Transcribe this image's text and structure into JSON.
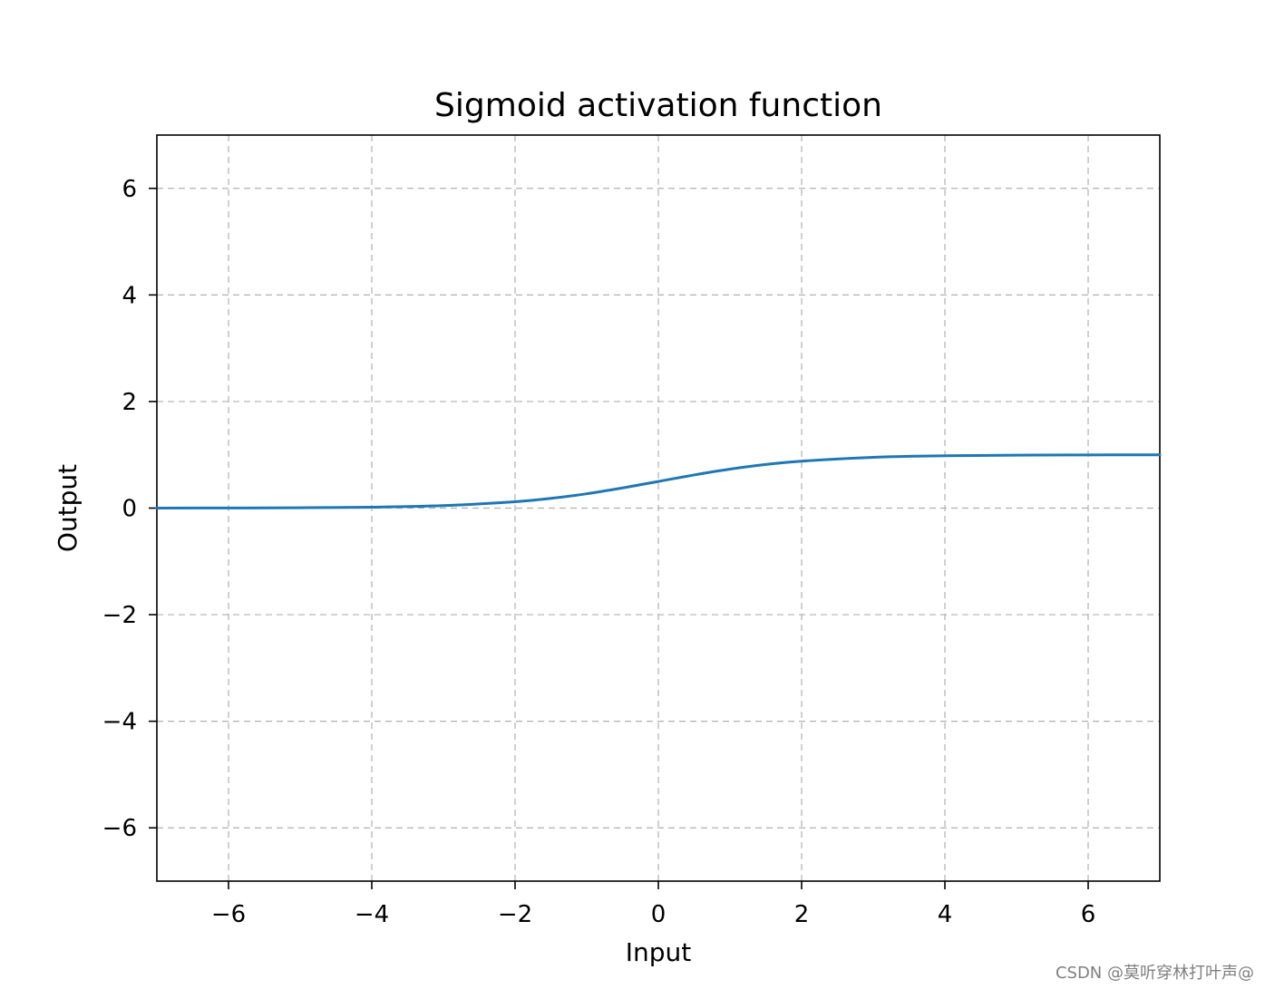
{
  "chart_data": {
    "type": "line",
    "title": "Sigmoid activation function",
    "xlabel": "Input",
    "ylabel": "Output",
    "xlim": [
      -7,
      7
    ],
    "ylim": [
      -7,
      7
    ],
    "xticks": [
      -6,
      -4,
      -2,
      0,
      2,
      4,
      6
    ],
    "yticks": [
      -6,
      -4,
      -2,
      0,
      2,
      4,
      6
    ],
    "xtick_labels": [
      "−6",
      "−4",
      "−2",
      "0",
      "2",
      "4",
      "6"
    ],
    "ytick_labels": [
      "−6",
      "−4",
      "−2",
      "0",
      "2",
      "4",
      "6"
    ],
    "grid": true,
    "grid_style": "dashed",
    "series": [
      {
        "color": "#1f77b4",
        "x": [
          -7,
          -6,
          -5,
          -4,
          -3,
          -2,
          -1.5,
          -1,
          -0.5,
          0,
          0.5,
          1,
          1.5,
          2,
          3,
          4,
          5,
          6,
          7
        ],
        "y": [
          0.0009,
          0.0025,
          0.0067,
          0.018,
          0.047,
          0.119,
          0.182,
          0.269,
          0.378,
          0.5,
          0.622,
          0.731,
          0.818,
          0.881,
          0.953,
          0.982,
          0.993,
          0.998,
          0.999
        ]
      }
    ]
  },
  "watermark": "CSDN @莫听穿林打叶声@"
}
